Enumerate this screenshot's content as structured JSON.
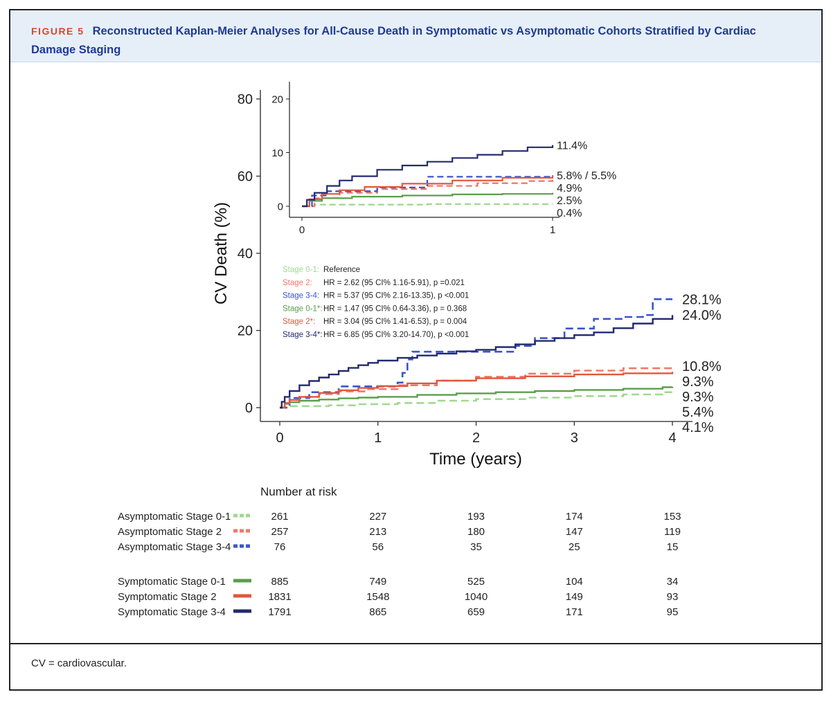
{
  "figure": {
    "number": "FIGURE 5",
    "title": "Reconstructed Kaplan-Meier Analyses for All-Cause Death in Symptomatic vs Asymptomatic Cohorts Stratified by Cardiac Damage Staging",
    "footnote": "CV = cardiovascular."
  },
  "chart_data": [
    {
      "type": "line",
      "name": "main",
      "xlabel": "Time (years)",
      "ylabel": "CV Death (%)",
      "xlim": [
        0,
        4
      ],
      "ylim": [
        0,
        80
      ],
      "xticks": [
        "0",
        "1",
        "2",
        "3",
        "4"
      ],
      "yticks": [
        "0",
        "20",
        "40",
        "60",
        "80"
      ],
      "grid": false,
      "series": [
        {
          "name": "Asymptomatic Stage 0-1",
          "color": "#9fd98f",
          "dash": true,
          "end_label": "4.1%",
          "points": [
            [
              0,
              0
            ],
            [
              0.1,
              0.4
            ],
            [
              0.2,
              0.4
            ],
            [
              0.5,
              0.6
            ],
            [
              0.8,
              0.9
            ],
            [
              1.2,
              1.2
            ],
            [
              1.6,
              1.8
            ],
            [
              2.0,
              2.2
            ],
            [
              2.5,
              2.6
            ],
            [
              3.0,
              3.0
            ],
            [
              3.5,
              3.4
            ],
            [
              3.9,
              4.0
            ],
            [
              4.0,
              4.1
            ]
          ]
        },
        {
          "name": "Asymptomatic Stage 2",
          "color": "#ec7a6b",
          "dash": true,
          "end_label": "10.8%",
          "points": [
            [
              0,
              0
            ],
            [
              0.1,
              2.0
            ],
            [
              0.2,
              2.8
            ],
            [
              0.4,
              3.5
            ],
            [
              0.6,
              4.2
            ],
            [
              0.9,
              4.8
            ],
            [
              1.2,
              5.8
            ],
            [
              1.6,
              7.0
            ],
            [
              2.0,
              8.0
            ],
            [
              2.5,
              8.8
            ],
            [
              3.0,
              9.6
            ],
            [
              3.5,
              10.2
            ],
            [
              4.0,
              10.8
            ]
          ]
        },
        {
          "name": "Asymptomatic Stage 3-4",
          "color": "#3b55cc",
          "dash": true,
          "end_label": "28.1%",
          "points": [
            [
              0,
              0
            ],
            [
              0.1,
              2.5
            ],
            [
              0.3,
              4.0
            ],
            [
              0.6,
              5.5
            ],
            [
              0.9,
              5.5
            ],
            [
              1.2,
              6.5
            ],
            [
              1.25,
              9.0
            ],
            [
              1.3,
              12.5
            ],
            [
              1.35,
              14.5
            ],
            [
              1.6,
              14.5
            ],
            [
              2.0,
              14.5
            ],
            [
              2.4,
              16.0
            ],
            [
              2.6,
              18.0
            ],
            [
              2.9,
              20.5
            ],
            [
              3.2,
              23.0
            ],
            [
              3.5,
              23.5
            ],
            [
              3.7,
              24.0
            ],
            [
              3.8,
              28.1
            ],
            [
              4.0,
              28.1
            ]
          ]
        },
        {
          "name": "Symptomatic Stage 0-1",
          "color": "#5a9e4a",
          "dash": false,
          "end_label": "5.4%",
          "points": [
            [
              0,
              0
            ],
            [
              0.05,
              1.0
            ],
            [
              0.1,
              1.4
            ],
            [
              0.2,
              1.8
            ],
            [
              0.4,
              2.1
            ],
            [
              0.6,
              2.4
            ],
            [
              0.8,
              2.6
            ],
            [
              1.0,
              2.8
            ],
            [
              1.4,
              3.3
            ],
            [
              1.8,
              3.7
            ],
            [
              2.2,
              4.0
            ],
            [
              2.6,
              4.3
            ],
            [
              3.0,
              4.6
            ],
            [
              3.5,
              4.9
            ],
            [
              3.9,
              5.3
            ],
            [
              4.0,
              5.4
            ]
          ]
        },
        {
          "name": "Symptomatic Stage 2",
          "color": "#e0573d",
          "dash": false,
          "end_label": "9.3%",
          "points": [
            [
              0,
              0
            ],
            [
              0.05,
              1.2
            ],
            [
              0.1,
              2.0
            ],
            [
              0.2,
              2.8
            ],
            [
              0.4,
              3.8
            ],
            [
              0.6,
              4.5
            ],
            [
              0.8,
              5.1
            ],
            [
              1.0,
              5.6
            ],
            [
              1.3,
              6.3
            ],
            [
              1.6,
              7.0
            ],
            [
              2.0,
              7.6
            ],
            [
              2.5,
              8.1
            ],
            [
              3.0,
              8.6
            ],
            [
              3.5,
              8.9
            ],
            [
              4.0,
              9.3
            ]
          ]
        },
        {
          "name": "Symptomatic Stage 3-4",
          "color": "#222a6e",
          "dash": false,
          "end_label": "24.0%",
          "points": [
            [
              0,
              0
            ],
            [
              0.02,
              1.5
            ],
            [
              0.05,
              2.8
            ],
            [
              0.1,
              4.3
            ],
            [
              0.2,
              5.8
            ],
            [
              0.3,
              6.9
            ],
            [
              0.4,
              7.8
            ],
            [
              0.5,
              8.6
            ],
            [
              0.6,
              9.5
            ],
            [
              0.7,
              10.3
            ],
            [
              0.8,
              11.0
            ],
            [
              0.9,
              11.6
            ],
            [
              1.0,
              12.2
            ],
            [
              1.2,
              12.9
            ],
            [
              1.4,
              13.5
            ],
            [
              1.6,
              14.0
            ],
            [
              1.8,
              14.6
            ],
            [
              2.0,
              15.0
            ],
            [
              2.2,
              15.7
            ],
            [
              2.4,
              16.4
            ],
            [
              2.6,
              17.3
            ],
            [
              2.8,
              18.0
            ],
            [
              3.0,
              18.8
            ],
            [
              3.2,
              19.5
            ],
            [
              3.4,
              20.6
            ],
            [
              3.6,
              21.8
            ],
            [
              3.8,
              23.0
            ],
            [
              4.0,
              24.0
            ]
          ]
        }
      ],
      "end_labels_extra": [
        "9.3%"
      ],
      "annotations": {
        "hr_lines": [
          {
            "label": "Stage 0-1:",
            "text": "Reference",
            "color": "#9fd98f"
          },
          {
            "label": "Stage 2:",
            "text": "HR = 2.62 (95 CI% 1.16-5.91), p =0.021",
            "color": "#ec7a6b"
          },
          {
            "label": "Stage 3-4:",
            "text": "HR = 5.37 (95 CI% 2.16-13.35), p <0.001",
            "color": "#3b55cc"
          },
          {
            "label": "Stage 0-1*:",
            "text": "HR = 1.47 (95 CI% 0.64-3.36), p = 0.368",
            "color": "#5a9e4a"
          },
          {
            "label": "Stage 2*:",
            "text": "HR = 3.04 (95 CI% 1.41-6.53), p = 0.004",
            "color": "#e0573d"
          },
          {
            "label": "Stage 3-4*:",
            "text": "HR = 6.85 (95 CI% 3.20-14.70), p <0.001",
            "color": "#222a6e"
          }
        ]
      }
    },
    {
      "type": "line",
      "name": "inset",
      "xlim": [
        0,
        1
      ],
      "ylim": [
        0,
        20
      ],
      "xticks": [
        "0",
        "1"
      ],
      "yticks": [
        "0",
        "10",
        "20"
      ],
      "grid": false,
      "series": [
        {
          "name": "Asymptomatic Stage 0-1",
          "color": "#9fd98f",
          "dash": true,
          "end_label": "0.4%",
          "points": [
            [
              0,
              0
            ],
            [
              0.05,
              0.3
            ],
            [
              0.2,
              0.3
            ],
            [
              0.5,
              0.4
            ],
            [
              1.0,
              0.4
            ]
          ]
        },
        {
          "name": "Asymptomatic Stage 2",
          "color": "#ec7a6b",
          "dash": true,
          "end_label": "4.9%",
          "points": [
            [
              0,
              0
            ],
            [
              0.05,
              1.5
            ],
            [
              0.15,
              2.5
            ],
            [
              0.3,
              3.2
            ],
            [
              0.5,
              3.8
            ],
            [
              0.7,
              4.3
            ],
            [
              0.9,
              4.7
            ],
            [
              1.0,
              4.9
            ]
          ]
        },
        {
          "name": "Asymptomatic Stage 3-4",
          "color": "#3b55cc",
          "dash": true,
          "end_label": "",
          "points": [
            [
              0,
              0
            ],
            [
              0.04,
              2.0
            ],
            [
              0.1,
              2.8
            ],
            [
              0.3,
              3.5
            ],
            [
              0.5,
              5.5
            ],
            [
              0.75,
              5.5
            ],
            [
              0.9,
              5.5
            ],
            [
              1.0,
              5.5
            ]
          ]
        },
        {
          "name": "Symptomatic Stage 0-1",
          "color": "#5a9e4a",
          "dash": false,
          "end_label": "2.5%",
          "points": [
            [
              0,
              0
            ],
            [
              0.03,
              1.0
            ],
            [
              0.08,
              1.5
            ],
            [
              0.2,
              1.8
            ],
            [
              0.4,
              2.0
            ],
            [
              0.6,
              2.2
            ],
            [
              0.8,
              2.3
            ],
            [
              1.0,
              2.5
            ]
          ]
        },
        {
          "name": "Symptomatic Stage 2",
          "color": "#e0573d",
          "dash": false,
          "end_label": "5.8% / 5.5%",
          "points": [
            [
              0,
              0
            ],
            [
              0.03,
              1.3
            ],
            [
              0.08,
              2.3
            ],
            [
              0.15,
              3.0
            ],
            [
              0.25,
              3.6
            ],
            [
              0.4,
              4.2
            ],
            [
              0.6,
              4.8
            ],
            [
              0.8,
              5.3
            ],
            [
              1.0,
              5.8
            ]
          ]
        },
        {
          "name": "Symptomatic Stage 3-4",
          "color": "#222a6e",
          "dash": false,
          "end_label": "11.4%",
          "points": [
            [
              0,
              0
            ],
            [
              0.02,
              1.2
            ],
            [
              0.05,
              2.5
            ],
            [
              0.1,
              3.8
            ],
            [
              0.15,
              4.8
            ],
            [
              0.2,
              5.6
            ],
            [
              0.3,
              6.8
            ],
            [
              0.4,
              7.6
            ],
            [
              0.5,
              8.3
            ],
            [
              0.6,
              9.0
            ],
            [
              0.7,
              9.6
            ],
            [
              0.8,
              10.3
            ],
            [
              0.9,
              11.0
            ],
            [
              1.0,
              11.4
            ]
          ]
        }
      ]
    },
    {
      "type": "table",
      "name": "risk-table",
      "title": "Number at risk",
      "columns": [
        "0",
        "1",
        "2",
        "3",
        "4"
      ],
      "rows": [
        {
          "label": "Asymptomatic Stage 0-1",
          "color": "#9fd98f",
          "dash": true,
          "values": [
            "261",
            "227",
            "193",
            "174",
            "153"
          ]
        },
        {
          "label": "Asymptomatic Stage 2",
          "color": "#ec7a6b",
          "dash": true,
          "values": [
            "257",
            "213",
            "180",
            "147",
            "119"
          ]
        },
        {
          "label": "Asymptomatic Stage 3-4",
          "color": "#3b55cc",
          "dash": true,
          "values": [
            "76",
            "56",
            "35",
            "25",
            "15"
          ]
        },
        {
          "label": "Symptomatic Stage 0-1",
          "color": "#5a9e4a",
          "dash": false,
          "values": [
            "885",
            "749",
            "525",
            "104",
            "34"
          ]
        },
        {
          "label": "Symptomatic Stage 2",
          "color": "#e0573d",
          "dash": false,
          "values": [
            "1831",
            "1548",
            "1040",
            "149",
            "93"
          ]
        },
        {
          "label": "Symptomatic Stage 3-4",
          "color": "#222a6e",
          "dash": false,
          "values": [
            "1791",
            "865",
            "659",
            "171",
            "95"
          ]
        }
      ]
    }
  ]
}
